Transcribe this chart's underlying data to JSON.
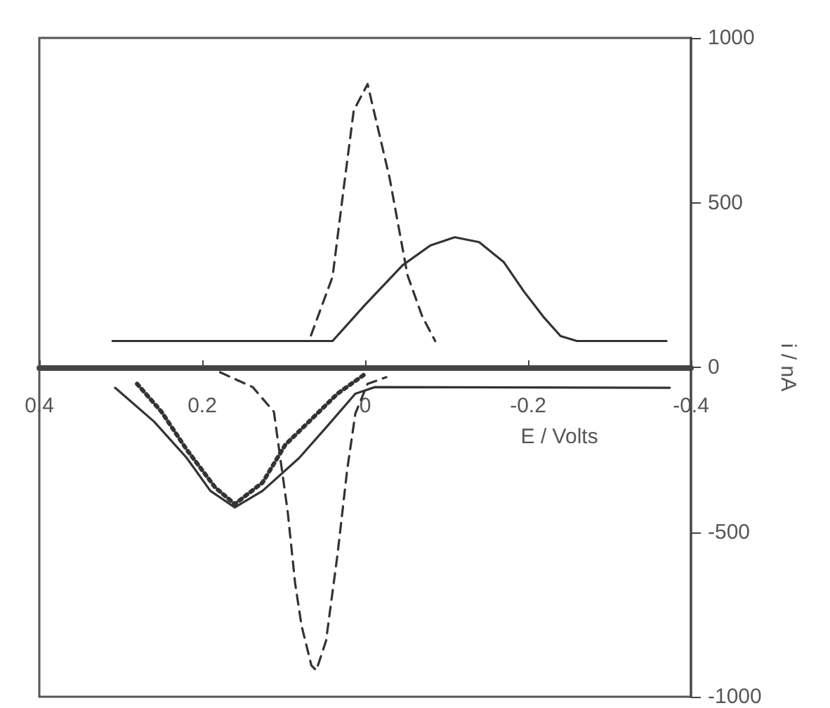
{
  "chart_data": {
    "type": "line",
    "xlabel": "E / Volts",
    "ylabel": "i / nA",
    "xlim": [
      0.4,
      -0.4
    ],
    "xticks": [
      0.4,
      0.2,
      0,
      -0.2,
      -0.4
    ],
    "ylim": [
      -1000,
      1000
    ],
    "yticks": [
      -1000,
      -500,
      0,
      500,
      1000
    ],
    "marker": "none",
    "series": [
      {
        "color": "#333333",
        "line_style": "solid",
        "x": [
          0.31,
          0.1,
          0.04,
          0.0,
          -0.046,
          -0.08,
          -0.11,
          -0.14,
          -0.17,
          -0.195,
          -0.22,
          -0.24,
          -0.26,
          -0.37
        ],
        "values": [
          80,
          80,
          80,
          190,
          310,
          370,
          395,
          380,
          320,
          230,
          150,
          95,
          80,
          80
        ]
      },
      {
        "color": "#333333",
        "line_style": "dashed",
        "x": [
          0.31,
          0.1,
          0.069,
          0.04,
          0.026,
          0.014,
          -0.003,
          -0.03,
          -0.052,
          -0.07,
          -0.086
        ],
        "values": [
          80,
          80,
          80,
          275,
          550,
          780,
          860,
          575,
          280,
          155,
          80
        ]
      },
      {
        "color": "#333333",
        "line_style": "solid",
        "x": [
          0.307,
          0.259,
          0.219,
          0.19,
          0.16,
          0.126,
          0.081,
          0.047,
          0.012,
          -0.012,
          -0.374
        ],
        "values": [
          -62,
          -165,
          -275,
          -375,
          -425,
          -375,
          -275,
          -180,
          -80,
          -60,
          -62
        ]
      },
      {
        "color": "#333333",
        "line_style": "dotted",
        "x": [
          0.28,
          0.25,
          0.219,
          0.184,
          0.16,
          0.126,
          0.098,
          0.069,
          0.034,
          0.0
        ],
        "values": [
          -50,
          -135,
          -250,
          -365,
          -415,
          -350,
          -235,
          -165,
          -80,
          -20
        ]
      },
      {
        "color": "#333333",
        "line_style": "dashed",
        "x": [
          0.178,
          0.138,
          0.112,
          0.095,
          0.086,
          0.078,
          0.066,
          0.06,
          0.048,
          0.034,
          0.022,
          0.012,
          -0.003,
          -0.026
        ],
        "values": [
          -15,
          -60,
          -135,
          -440,
          -655,
          -785,
          -905,
          -920,
          -830,
          -570,
          -310,
          -140,
          -50,
          -30
        ]
      }
    ]
  }
}
